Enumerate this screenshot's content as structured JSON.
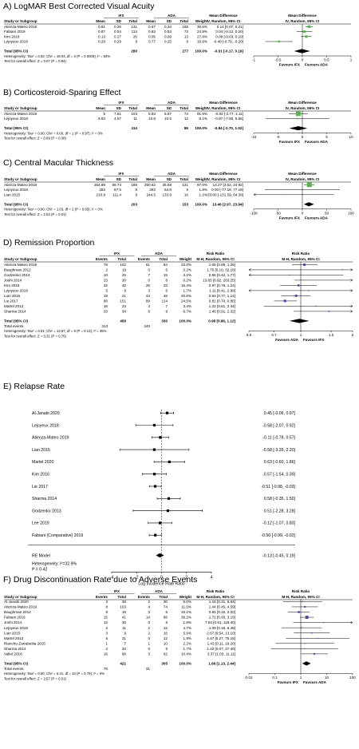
{
  "chart_data": [
    {
      "type": "forest",
      "title": "A) LogMAR Best Corrected Visual Acuity",
      "group1": "IFX",
      "group2": "ADA",
      "headers": {
        "study": "Study or Subgroup",
        "c1": "Mean",
        "c2": "SD",
        "c3": "Total",
        "c4": "Mean",
        "c5": "SD",
        "c6": "Total",
        "weight": "Weight",
        "effect_title": "Mean Difference",
        "effect_sub": "IV, Random, 95% CI",
        "plot_title": "Mean Difference",
        "plot_sub": "IV, Random, 95% CI"
      },
      "rows": [
        {
          "study": "Atienza-Mateo 2019",
          "c1": "0.81",
          "c2": "0.26",
          "c3": "131",
          "c4": "0.67",
          "c5": "0.34",
          "c6": "185",
          "weight": "30.5%",
          "ci_text": "0.14 [0.07, 0.21]",
          "est": 0.14,
          "lo": 0.07,
          "hi": 0.21,
          "w": 30.5
        },
        {
          "study": "Fabiani 2019",
          "c1": "0.87",
          "c2": "0.54",
          "c3": "114",
          "c4": "0.83",
          "c5": "0.53",
          "c6": "73",
          "weight": "24.8%",
          "ci_text": "0.04 [-0.12, 0.20]",
          "est": 0.04,
          "lo": -0.12,
          "hi": 0.2,
          "w": 24.8
        },
        {
          "study": "Kim 2016",
          "c1": "0.13",
          "c2": "0.27",
          "c3": "26",
          "c4": "0.05",
          "c5": "0.09",
          "c6": "13",
          "weight": "27.8%",
          "ci_text": "0.08 [-0.03, 0.19]",
          "est": 0.08,
          "lo": -0.03,
          "hi": 0.19,
          "w": 27.8
        },
        {
          "study": "Lejoyeux 2018",
          "c1": "0.29",
          "c2": "0.29",
          "c3": "9",
          "c4": "0.77",
          "c5": "0.25",
          "c6": "6",
          "weight": "16.9%",
          "ci_text": "-0.48 [-0.76, -0.20]",
          "est": -0.48,
          "lo": -0.76,
          "hi": -0.2,
          "w": 16.9
        }
      ],
      "total": {
        "label": "Total (95% CI)",
        "n1": "280",
        "n2": "277",
        "weight": "100.0%",
        "ci_text": "-0.01 [-0.17, 0.16]",
        "est": -0.01,
        "lo": -0.17,
        "hi": 0.16
      },
      "notes": [
        "Heterogeneity: Tau² = 0.02; Chi² = 19.04, df = 3 (P = 0.0003); I² = 84%",
        "Test for overall effect: Z = 0.07 (P = 0.94)"
      ],
      "scale": "linear",
      "xlim": [
        -1,
        1
      ],
      "ticks": [
        "-1",
        "-0.5",
        "0",
        "0.5",
        "1"
      ],
      "tick_vals": [
        -1,
        -0.5,
        0,
        0.5,
        1
      ],
      "favours_left": "Favours IFX",
      "favours_right": "Favours ADA",
      "marker_color": "#52b848"
    },
    {
      "type": "forest",
      "title": "B) Corticosteroid-Sparing Effect",
      "group1": "IFX",
      "group2": "ADA",
      "headers": {
        "study": "Study or Subgroup",
        "c1": "Mean",
        "c2": "SD",
        "c3": "Total",
        "c4": "Mean",
        "c5": "SD",
        "c6": "Total",
        "weight": "Weight",
        "effect_title": "Mean Difference",
        "effect_sub": "IV, Random, 95% CI",
        "plot_title": "Mean Difference",
        "plot_sub": "IV, Random, 95% CI"
      },
      "rows": [
        {
          "study": "Atienza-Mateo 2019",
          "c1": "5",
          "c2": "7.51",
          "c3": "103",
          "c4": "5.83",
          "c5": "5.67",
          "c6": "74",
          "weight": "91.9%",
          "ci_text": "-0.83 [-2.77, 1.11]",
          "est": -0.83,
          "lo": -2.77,
          "hi": 1.11,
          "w": 91.9
        },
        {
          "study": "Lejoyeux 2018",
          "c1": "9.83",
          "c2": "4.57",
          "c3": "11",
          "c4": "10.8",
          "c5": "10.5",
          "c6": "12",
          "weight": "8.1%",
          "ci_text": "-0.97 [-7.50, 5.56]",
          "est": -0.97,
          "lo": -7.5,
          "hi": 5.56,
          "w": 8.1
        }
      ],
      "total": {
        "label": "Total (95% CI)",
        "n1": "114",
        "n2": "86",
        "weight": "100.0%",
        "ci_text": "-0.84 [-2.70, 1.02]",
        "est": -0.84,
        "lo": -2.7,
        "hi": 1.02
      },
      "notes": [
        "Heterogeneity: Tau² = 0.00; Chi² = 0.00, df = 1 (P = 0.97); I² = 0%",
        "Test for overall effect: Z = 0.89 (P = 0.38)"
      ],
      "scale": "linear",
      "xlim": [
        -10,
        10
      ],
      "ticks": [
        "-10",
        "-5",
        "0",
        "5",
        "10"
      ],
      "tick_vals": [
        -10,
        -5,
        0,
        5,
        10
      ],
      "favours_left": "Favours IFX",
      "favours_right": "Favours ADA",
      "marker_color": "#52b848"
    },
    {
      "type": "forest",
      "title": "C) Central Macular Thickness",
      "group1": "IFX",
      "group2": "ADA",
      "headers": {
        "study": "Study or Subgroup",
        "c1": "Mean",
        "c2": "SD",
        "c3": "Total",
        "c4": "Mean",
        "c5": "SD",
        "c6": "Total",
        "weight": "Weight",
        "effect_title": "Mean Difference",
        "effect_sub": "IV, Random, 95% CI",
        "plot_title": "Mean Difference",
        "plot_sub": "IV, Random, 95% CI"
      },
      "rows": [
        {
          "study": "Atienza-Mateo 2019",
          "c1": "264.89",
          "c2": "59.74",
          "c3": "185",
          "c4": "250.62",
          "c5": "36.58",
          "c6": "131",
          "weight": "97.0%",
          "ci_text": "14.27 [3.62, 24.92]",
          "est": 14.27,
          "lo": 3.62,
          "hi": 24.92,
          "w": 97.0
        },
        {
          "study": "Lejoyeux 2018",
          "c1": "282",
          "c2": "87.5",
          "c3": "9",
          "c4": "282",
          "c5": "64.8",
          "c6": "6",
          "weight": "1.8%",
          "ci_text": "0.00 [-77.18, 77.18]",
          "est": 0.0,
          "lo": -77.18,
          "hi": 77.18,
          "w": 1.8
        },
        {
          "study": "Lian 2015",
          "c1": "210.9",
          "c2": "111.4",
          "c3": "9",
          "c4": "244.5",
          "c5": "133.9",
          "c6": "16",
          "weight": "1.2%",
          "ci_text": "-33.60 [-131.59, 64.39]",
          "est": -33.6,
          "lo": -131.59,
          "hi": 64.39,
          "w": 1.2
        }
      ],
      "total": {
        "label": "Total (95% CI)",
        "n1": "203",
        "n2": "153",
        "weight": "100.0%",
        "ci_text": "13.46 [2.97, 23.94]",
        "est": 13.46,
        "lo": 2.97,
        "hi": 23.94
      },
      "notes": [
        "Heterogeneity: Tau² = 0.00; Chi² = 1.03, df = 2 (P = 0.60); I² = 0%",
        "Test for overall effect: Z = 2.52 (P = 0.01)"
      ],
      "scale": "linear",
      "xlim": [
        -100,
        100
      ],
      "ticks": [
        "-100",
        "-50",
        "0",
        "50",
        "100"
      ],
      "tick_vals": [
        -100,
        -50,
        0,
        50,
        100
      ],
      "favours_left": "Favours IFX",
      "favours_right": "Favours ADA",
      "marker_color": "#52b848"
    },
    {
      "type": "forest",
      "title": "D) Remission Proportion",
      "group1": "IFX",
      "group2": "ADA",
      "headers": {
        "study": "Study or Subgroup",
        "c1": "Events",
        "c3": "Total",
        "c4": "Events",
        "c6": "Total",
        "weight": "Weight",
        "effect_title": "Risk Ratio",
        "effect_sub": "M-H, Random, 95% CI",
        "plot_title": "Risk Ratio",
        "plot_sub": "M-H, Random, 95% CI"
      },
      "rows": [
        {
          "study": "Atienza-Mateo 2019",
          "c1": "78",
          "c3": "102",
          "c4": "61",
          "c6": "84",
          "weight": "23.0%",
          "ci_text": "1.05 [0.89, 1.25]",
          "est": 1.05,
          "lo": 0.89,
          "hi": 1.25,
          "w": 23.0
        },
        {
          "study": "Baughman 2012",
          "c1": "2",
          "c3": "19",
          "c4": "0",
          "c6": "6",
          "weight": "0.2%",
          "ci_text": "1.75 [0.10, 32.18]",
          "est": 1.75,
          "lo": 0.1,
          "hi": 32.18,
          "w": 0.2
        },
        {
          "study": "Godzenko 2014",
          "c1": "10",
          "c3": "25",
          "c4": "7",
          "c6": "15",
          "weight": "3.1%",
          "ci_text": "0.86 [0.42, 1.77]",
          "est": 0.86,
          "lo": 0.42,
          "hi": 1.77,
          "w": 3.1
        },
        {
          "study": "Joshi 2014",
          "c1": "23",
          "c3": "30",
          "c4": "0",
          "c6": "8",
          "weight": "0.2%",
          "ci_text": "13.65 [0.92, 203.25]",
          "est": 13.65,
          "lo": 0.92,
          "hi": 203.25,
          "w": 0.2
        },
        {
          "study": "Kim 2016",
          "c1": "32",
          "c3": "42",
          "c4": "26",
          "c6": "33",
          "weight": "16.4%",
          "ci_text": "0.97 [0.76, 1.24]",
          "est": 0.97,
          "lo": 0.76,
          "hi": 1.24,
          "w": 16.4
        },
        {
          "study": "Lejoyeux 2018",
          "c1": "5",
          "c3": "9",
          "c4": "3",
          "c6": "6",
          "weight": "1.7%",
          "ci_text": "1.11 [0.41, 2.99]",
          "est": 1.11,
          "lo": 0.41,
          "hi": 2.99,
          "w": 1.7
        },
        {
          "study": "Lian 2015",
          "c1": "18",
          "c3": "21",
          "c4": "44",
          "c6": "48",
          "weight": "20.6%",
          "ci_text": "0.94 [0.77, 1.14]",
          "est": 0.94,
          "lo": 0.77,
          "hi": 1.14,
          "w": 20.6
        },
        {
          "study": "Lie 2017",
          "c1": "96",
          "c3": "151",
          "c4": "89",
          "c6": "114",
          "weight": "24.5%",
          "ci_text": "0.81 [0.70, 0.95]",
          "est": 0.81,
          "lo": 0.7,
          "hi": 0.95,
          "w": 24.5
        },
        {
          "study": "Martel 2012",
          "c1": "16",
          "c3": "23",
          "c4": "4",
          "c6": "7",
          "weight": "3.4%",
          "ci_text": "1.22 [0.61, 2.44]",
          "est": 1.22,
          "lo": 0.61,
          "hi": 2.44,
          "w": 3.4
        },
        {
          "study": "Sharma 2014",
          "c1": "33",
          "c3": "34",
          "c4": "6",
          "c6": "9",
          "weight": "6.7%",
          "ci_text": "1.46 [0.91, 2.32]",
          "est": 1.46,
          "lo": 0.91,
          "hi": 2.32,
          "w": 6.7
        }
      ],
      "total": {
        "label": "Total (95% CI)",
        "n1": "456",
        "n2": "330",
        "weight": "100.0%",
        "ci_text": "0.98 [0.86, 1.12]",
        "est": 0.98,
        "lo": 0.86,
        "hi": 1.12
      },
      "total_events": {
        "label": "Total events",
        "e1": "313",
        "e2": "240"
      },
      "notes": [
        "Heterogeneity: Tau² = 0.01; Chi² = 13.87, df = 9 (P = 0.13); I² = 35%",
        "Test for overall effect: Z = 0.31 (P = 0.76)"
      ],
      "scale": "log",
      "xlim": [
        0.5,
        2
      ],
      "ticks": [
        "0.5",
        "0.7",
        "1",
        "1.5",
        "2"
      ],
      "tick_vals": [
        0.5,
        0.7,
        1,
        1.5,
        2
      ],
      "favours_left": "Favours ADA",
      "favours_right": "Favours IFX",
      "marker_color": "#3f3fb5"
    },
    {
      "type": "forest_metafor",
      "title": "E) Relapse Rate",
      "rows": [
        {
          "study": "Al-Janabi 2020",
          "ci_text": "0.45 [-0.06,  0.97]",
          "est": 0.45,
          "lo": -0.06,
          "hi": 0.97
        },
        {
          "study": "Lejoyeux 2018",
          "ci_text": "-0.58 [-2.07,  0.92]",
          "est": -0.58,
          "lo": -2.07,
          "hi": 0.92
        },
        {
          "study": "Atienza-Mateo 2019",
          "ci_text": "-0.11 [-0.78,  0.57]",
          "est": -0.11,
          "lo": -0.78,
          "hi": 0.57
        },
        {
          "study": "Lian 2015",
          "ci_text": "-0.58 [-3.35,  2.20]",
          "est": -0.58,
          "lo": -3.35,
          "hi": 2.2
        },
        {
          "study": "Martel 2020",
          "ci_text": "0.63 [-0.60,  1.86]",
          "est": 0.63,
          "lo": -0.6,
          "hi": 1.86
        },
        {
          "study": "Kim 2016",
          "ci_text": "-0.57 [-1.54,  0.39]",
          "est": -0.57,
          "lo": -1.54,
          "hi": 0.39
        },
        {
          "study": "Lie 2017",
          "ci_text": "-0.51 [-0.98, -0.03]",
          "est": -0.51,
          "lo": -0.98,
          "hi": -0.03
        },
        {
          "study": "Sharma 2014",
          "ci_text": "0.58 [-0.35,  1.50]",
          "est": 0.58,
          "lo": -0.35,
          "hi": 1.5
        },
        {
          "study": "Godzenko 2013",
          "ci_text": "0.51 [-2.28,  3.28]",
          "est": 0.51,
          "lo": -2.28,
          "hi": 3.28
        },
        {
          "study": "Lee 2019",
          "ci_text": "-0.12 [-1.07,  0.83]",
          "est": -0.12,
          "lo": -1.07,
          "hi": 0.83
        },
        {
          "study": "Fabiani (Comparative) 2019",
          "ci_text": "-0.50 [-0.99, -0.02]",
          "est": -0.5,
          "lo": -0.99,
          "hi": -0.02
        }
      ],
      "model": {
        "label": "RE Model",
        "ci_text": "-0.13 [-0.45,  0.19]",
        "est": -0.13,
        "lo": -0.45,
        "hi": 0.19
      },
      "notes": [
        "Heterogeneity; I²=32.9%",
        "P = 0.42"
      ],
      "xlabel": "Log Incidence Rate Ratio",
      "xlim": [
        -4,
        4
      ],
      "ticks": [
        "-4",
        "-2",
        "0",
        "2",
        "4"
      ],
      "tick_vals": [
        -4,
        -2,
        0,
        2,
        4
      ]
    },
    {
      "type": "forest",
      "title": "F) Drug Discontinuation Rate due to Adverse Events",
      "group1": "IFX",
      "group2": "ADA",
      "headers": {
        "study": "Study or Subgroup",
        "c1": "Events",
        "c3": "Total",
        "c4": "Events",
        "c6": "Total",
        "weight": "Weight",
        "effect_title": "Risk Ratio",
        "effect_sub": "M-H, Random, 95% CI",
        "plot_title": "Risk Ratio",
        "plot_sub": "M-H, Random, 95% CI"
      },
      "rows": [
        {
          "study": "Al-Janabi 2020",
          "c1": "3",
          "c3": "38",
          "c4": "2",
          "c6": "30",
          "weight": "5.0%",
          "ci_text": "1.18 [0.21, 6.64]",
          "est": 1.18,
          "lo": 0.21,
          "hi": 6.64,
          "w": 5.0
        },
        {
          "study": "Atienza-Mateo 2019",
          "c1": "8",
          "c3": "103",
          "c4": "4",
          "c6": "74",
          "weight": "11.0%",
          "ci_text": "1.44 [0.45, 4.59]",
          "est": 1.44,
          "lo": 0.45,
          "hi": 4.59,
          "w": 11.0
        },
        {
          "study": "Baughman 2012",
          "c1": "8",
          "c3": "19",
          "c4": "3",
          "c6": "6",
          "weight": "16.1%",
          "ci_text": "0.84 [0.32, 2.20]",
          "est": 0.84,
          "lo": 0.32,
          "hi": 2.2,
          "w": 16.1
        },
        {
          "study": "Fabiani 2019",
          "c1": "15",
          "c3": "41",
          "c4": "14",
          "c6": "66",
          "weight": "39.2%",
          "ci_text": "1.72 [0.93, 3.19]",
          "est": 1.72,
          "lo": 0.93,
          "hi": 3.19,
          "w": 39.2
        },
        {
          "study": "Joshi 2014",
          "c1": "13",
          "c3": "30",
          "c4": "0",
          "c6": "8",
          "weight": "1.8%",
          "ci_text": "7.84 [0.51, 119.40]",
          "est": 7.84,
          "lo": 0.51,
          "hi": 119.4,
          "w": 1.8
        },
        {
          "study": "Lejoyeux 2018",
          "c1": "2",
          "c3": "11",
          "c4": "2",
          "c6": "12",
          "weight": "4.7%",
          "ci_text": "1.09 [0.18, 6.48]",
          "est": 1.09,
          "lo": 0.18,
          "hi": 6.48,
          "w": 4.7
        },
        {
          "study": "Lian 2015",
          "c1": "3",
          "c3": "9",
          "c4": "2",
          "c6": "16",
          "weight": "5.9%",
          "ci_text": "2.67 [0.54, 13.10]",
          "est": 2.67,
          "lo": 0.54,
          "hi": 13.1,
          "w": 5.9
        },
        {
          "study": "Martel 2012",
          "c1": "5",
          "c3": "31",
          "c4": "0",
          "c6": "12",
          "weight": "1.9%",
          "ci_text": "4.47 [0.27, 75.15]",
          "est": 4.47,
          "lo": 0.27,
          "hi": 75.15,
          "w": 1.9
        },
        {
          "study": "Riancho-Zarrabeitia 2015",
          "c1": "1",
          "c3": "7",
          "c4": "1",
          "c6": "10",
          "weight": "2.2%",
          "ci_text": "1.43 [0.11, 19.20]",
          "est": 1.43,
          "lo": 0.11,
          "hi": 19.2,
          "w": 2.2
        },
        {
          "study": "Sharma 2014",
          "c1": "2",
          "c3": "34",
          "c4": "0",
          "c6": "9",
          "weight": "1.7%",
          "ci_text": "1.43 [0.07, 27.40]",
          "est": 1.43,
          "lo": 0.07,
          "hi": 27.4,
          "w": 1.7
        },
        {
          "study": "Vallet 2016",
          "c1": "16",
          "c3": "98",
          "c4": "3",
          "c6": "62",
          "weight": "10.4%",
          "ci_text": "3.37 [1.03, 11.11]",
          "est": 3.37,
          "lo": 1.03,
          "hi": 11.11,
          "w": 10.4
        }
      ],
      "total": {
        "label": "Total (95% CI)",
        "n1": "421",
        "n2": "305",
        "weight": "100.0%",
        "ci_text": "1.66 [1.13, 2.44]",
        "est": 1.66,
        "lo": 1.13,
        "hi": 2.44
      },
      "total_events": {
        "label": "Total events",
        "e1": "76",
        "e2": "31"
      },
      "notes": [
        "Heterogeneity: Tau² = 0.00; Chi² = 6.31, df = 10 (P = 0.79); I² = 0%",
        "Test for overall effect: Z = 2.57 (P = 0.01)"
      ],
      "scale": "log",
      "xlim": [
        0.01,
        100
      ],
      "ticks": [
        "0.01",
        "0.1",
        "1",
        "10",
        "100"
      ],
      "tick_vals": [
        0.01,
        0.1,
        1,
        10,
        100
      ],
      "favours_left": "Favours IFX",
      "favours_right": "Favours ADA",
      "marker_color": "#3f3fb5"
    }
  ]
}
